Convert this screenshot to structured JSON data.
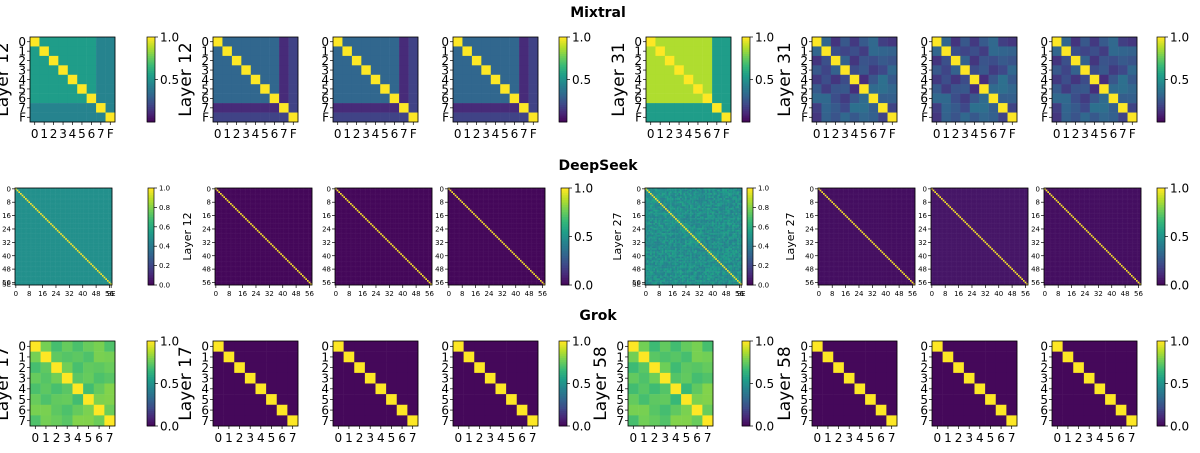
{
  "figure": {
    "colormap": "viridis",
    "color_low": "#440154",
    "color_high": "#fde725",
    "row_titles": [
      "Mixtral",
      "DeepSeek",
      "Grok"
    ]
  },
  "chart_data": [
    {
      "type": "heatmap",
      "row": "Mixtral",
      "ylabel": "Layer 12",
      "x_ticklabels": [
        "0",
        "1",
        "2",
        "3",
        "4",
        "5",
        "6",
        "7",
        "F"
      ],
      "y_ticklabels": [
        "0",
        "1",
        "2",
        "3",
        "4",
        "5",
        "6",
        "7",
        "F"
      ],
      "matrices": [
        {
          "base": 0.55,
          "diag": 1.0,
          "edge_band": 0.45
        }
      ],
      "colorbar": {
        "min": 0.0,
        "max": 1.0,
        "ticks": [
          "1.0",
          "0.5"
        ]
      }
    },
    {
      "type": "heatmap",
      "row": "Mixtral",
      "ylabel": "Layer 12",
      "x_ticklabels": [
        "0",
        "1",
        "2",
        "3",
        "4",
        "5",
        "6",
        "7",
        "F"
      ],
      "y_ticklabels": [
        "0",
        "1",
        "2",
        "3",
        "4",
        "5",
        "6",
        "7",
        "F"
      ],
      "matrices": [
        {
          "base": 0.33,
          "diag": 1.0,
          "band_row": 7,
          "band_value": 0.12,
          "last_col_value": 0.2
        },
        {
          "base": 0.33,
          "diag": 1.0,
          "band_row": 7,
          "band_value": 0.12,
          "last_col_value": 0.2
        },
        {
          "base": 0.33,
          "diag": 1.0,
          "band_row": 7,
          "band_value": 0.12,
          "last_col_value": 0.2
        }
      ],
      "colorbar": {
        "min": 0.0,
        "max": 1.0,
        "ticks": [
          "1.0",
          "0.5"
        ]
      }
    },
    {
      "type": "heatmap",
      "row": "Mixtral",
      "ylabel": "Layer 31",
      "x_ticklabels": [
        "0",
        "1",
        "2",
        "3",
        "4",
        "5",
        "6",
        "7",
        "F"
      ],
      "y_ticklabels": [
        "0",
        "1",
        "2",
        "3",
        "4",
        "5",
        "6",
        "7",
        "F"
      ],
      "matrices": [
        {
          "base": 0.88,
          "diag": 1.0,
          "edge_band": 0.55
        }
      ],
      "colorbar": {
        "min": 0.0,
        "max": 1.0,
        "ticks": [
          "1.0",
          "0.5"
        ]
      }
    },
    {
      "type": "heatmap",
      "row": "Mixtral",
      "ylabel": "Layer 31",
      "x_ticklabels": [
        "0",
        "1",
        "2",
        "3",
        "4",
        "5",
        "6",
        "7",
        "F"
      ],
      "y_ticklabels": [
        "0",
        "1",
        "2",
        "3",
        "4",
        "5",
        "6",
        "7",
        "F"
      ],
      "matrices": [
        {
          "base": 0.25,
          "diag": 1.0,
          "noise": 0.12
        },
        {
          "base": 0.25,
          "diag": 1.0,
          "noise": 0.12
        },
        {
          "base": 0.25,
          "diag": 1.0,
          "noise": 0.12
        }
      ],
      "colorbar": {
        "min": 0.0,
        "max": 1.0,
        "ticks": [
          "1.0",
          "0.5"
        ]
      }
    },
    {
      "type": "heatmap",
      "row": "DeepSeek",
      "ylabel": "Layer 12",
      "ncells": 58,
      "x_ticklabels": [
        "0",
        "8",
        "16",
        "24",
        "32",
        "40",
        "48",
        "56",
        "SE"
      ],
      "y_ticklabels": [
        "0",
        "8",
        "16",
        "24",
        "32",
        "40",
        "48",
        "56",
        "SE"
      ],
      "matrices": [
        {
          "base": 0.5,
          "diag": 1.0
        }
      ],
      "colorbar": {
        "min": 0.0,
        "max": 1.0,
        "ticks": [
          "1.0",
          "0.8",
          "0.6",
          "0.4",
          "0.2",
          "0.0"
        ]
      }
    },
    {
      "type": "heatmap",
      "row": "DeepSeek",
      "ylabel": "Layer 12",
      "ncells": 58,
      "x_ticklabels": [
        "0",
        "8",
        "16",
        "24",
        "32",
        "40",
        "48",
        "56"
      ],
      "y_ticklabels": [
        "0",
        "8",
        "16",
        "24",
        "32",
        "40",
        "48",
        "56"
      ],
      "matrices": [
        {
          "base": 0.02,
          "diag": 1.0
        },
        {
          "base": 0.02,
          "diag": 1.0
        },
        {
          "base": 0.02,
          "diag": 1.0
        }
      ],
      "colorbar": {
        "min": 0.0,
        "max": 1.0,
        "ticks": [
          "1.0",
          "0.5",
          "0.0"
        ]
      }
    },
    {
      "type": "heatmap",
      "row": "DeepSeek",
      "ylabel": "Layer 27",
      "ncells": 58,
      "x_ticklabels": [
        "0",
        "8",
        "16",
        "24",
        "32",
        "40",
        "48",
        "56",
        "SE"
      ],
      "y_ticklabels": [
        "0",
        "8",
        "16",
        "24",
        "32",
        "40",
        "48",
        "56",
        "SE"
      ],
      "matrices": [
        {
          "base": 0.5,
          "diag": 1.0,
          "noise": 0.08
        }
      ],
      "colorbar": {
        "min": 0.0,
        "max": 1.0,
        "ticks": [
          "1.0",
          "0.8",
          "0.6",
          "0.4",
          "0.2",
          "0.0"
        ]
      }
    },
    {
      "type": "heatmap",
      "row": "DeepSeek",
      "ylabel": "Layer 27",
      "ncells": 58,
      "x_ticklabels": [
        "0",
        "8",
        "16",
        "24",
        "32",
        "40",
        "48",
        "56"
      ],
      "y_ticklabels": [
        "0",
        "8",
        "16",
        "24",
        "32",
        "40",
        "48",
        "56"
      ],
      "matrices": [
        {
          "base": 0.04,
          "diag": 1.0
        },
        {
          "base": 0.06,
          "diag": 1.0
        },
        {
          "base": 0.04,
          "diag": 1.0
        }
      ],
      "colorbar": {
        "min": 0.0,
        "max": 1.0,
        "ticks": [
          "1.0",
          "0.5",
          "0.0"
        ]
      }
    },
    {
      "type": "heatmap",
      "row": "Grok",
      "ylabel": "Layer 17",
      "x_ticklabels": [
        "0",
        "1",
        "2",
        "3",
        "4",
        "5",
        "6",
        "7"
      ],
      "y_ticklabels": [
        "0",
        "1",
        "2",
        "3",
        "4",
        "5",
        "6",
        "7"
      ],
      "matrices": [
        {
          "base": 0.75,
          "diag": 1.0,
          "noise": 0.06
        }
      ],
      "colorbar": {
        "min": 0.0,
        "max": 1.0,
        "ticks": [
          "1.0",
          "0.5",
          "0.0"
        ]
      }
    },
    {
      "type": "heatmap",
      "row": "Grok",
      "ylabel": "Layer 17",
      "x_ticklabels": [
        "0",
        "1",
        "2",
        "3",
        "4",
        "5",
        "6",
        "7"
      ],
      "y_ticklabels": [
        "0",
        "1",
        "2",
        "3",
        "4",
        "5",
        "6",
        "7"
      ],
      "matrices": [
        {
          "base": 0.02,
          "diag": 1.0
        },
        {
          "base": 0.02,
          "diag": 1.0
        },
        {
          "base": 0.02,
          "diag": 1.0
        }
      ],
      "colorbar": {
        "min": 0.0,
        "max": 1.0,
        "ticks": [
          "1.0",
          "0.5",
          "0.0"
        ]
      }
    },
    {
      "type": "heatmap",
      "row": "Grok",
      "ylabel": "Layer 58",
      "x_ticklabels": [
        "0",
        "1",
        "2",
        "3",
        "4",
        "5",
        "6",
        "7"
      ],
      "y_ticklabels": [
        "0",
        "1",
        "2",
        "3",
        "4",
        "5",
        "6",
        "7"
      ],
      "matrices": [
        {
          "base": 0.74,
          "diag": 1.0,
          "noise": 0.07
        }
      ],
      "colorbar": {
        "min": 0.0,
        "max": 1.0,
        "ticks": [
          "1.0",
          "0.5",
          "0.0"
        ]
      }
    },
    {
      "type": "heatmap",
      "row": "Grok",
      "ylabel": "Layer 58",
      "x_ticklabels": [
        "0",
        "1",
        "2",
        "3",
        "4",
        "5",
        "6",
        "7"
      ],
      "y_ticklabels": [
        "0",
        "1",
        "2",
        "3",
        "4",
        "5",
        "6",
        "7"
      ],
      "matrices": [
        {
          "base": 0.02,
          "diag": 1.0
        },
        {
          "base": 0.02,
          "diag": 1.0
        },
        {
          "base": 0.02,
          "diag": 1.0
        }
      ],
      "colorbar": {
        "min": 0.0,
        "max": 1.0,
        "ticks": [
          "1.0",
          "0.5",
          "0.0"
        ]
      }
    }
  ]
}
